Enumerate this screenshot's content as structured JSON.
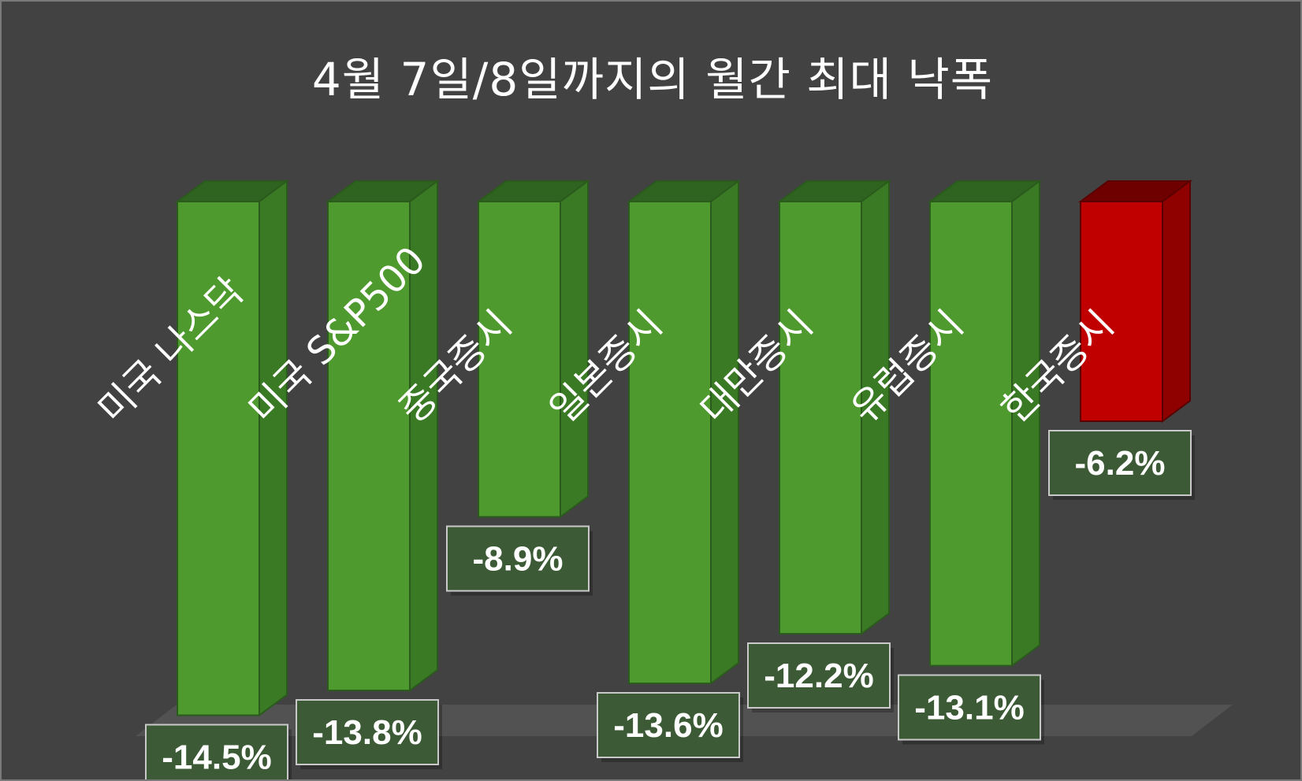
{
  "chart_data": {
    "type": "bar",
    "title": "4월 7일/8일까지의 월간 최대 낙폭",
    "categories": [
      "미국 나스닥",
      "미국 S&P500",
      "중국증시",
      "일본증시",
      "대만증시",
      "유럽증시",
      "한국증시"
    ],
    "values": [
      -14.5,
      -13.8,
      -8.9,
      -13.6,
      -12.2,
      -13.1,
      -6.2
    ],
    "data_labels": [
      "-14.5%",
      "-13.8%",
      "-8.9%",
      "-13.6%",
      "-12.2%",
      "-13.1%",
      "-6.2%"
    ],
    "ylim": [
      -15,
      0
    ],
    "xlabel": "",
    "ylabel": "",
    "grid": false,
    "legend": "none",
    "highlight_index": 6,
    "colors": {
      "background": "#424242",
      "bar_front": "#4e9a2e",
      "bar_side": "#3a7a25",
      "bar_top": "#2f6320",
      "bar_edge": "#2a5a1c",
      "highlight_front": "#c00000",
      "highlight_side": "#8f0000",
      "highlight_top": "#6e0000",
      "highlight_edge": "#5a0000",
      "label_box": "#3c5a35",
      "label_border": "#c9c9c9",
      "floor": "#555555"
    }
  }
}
